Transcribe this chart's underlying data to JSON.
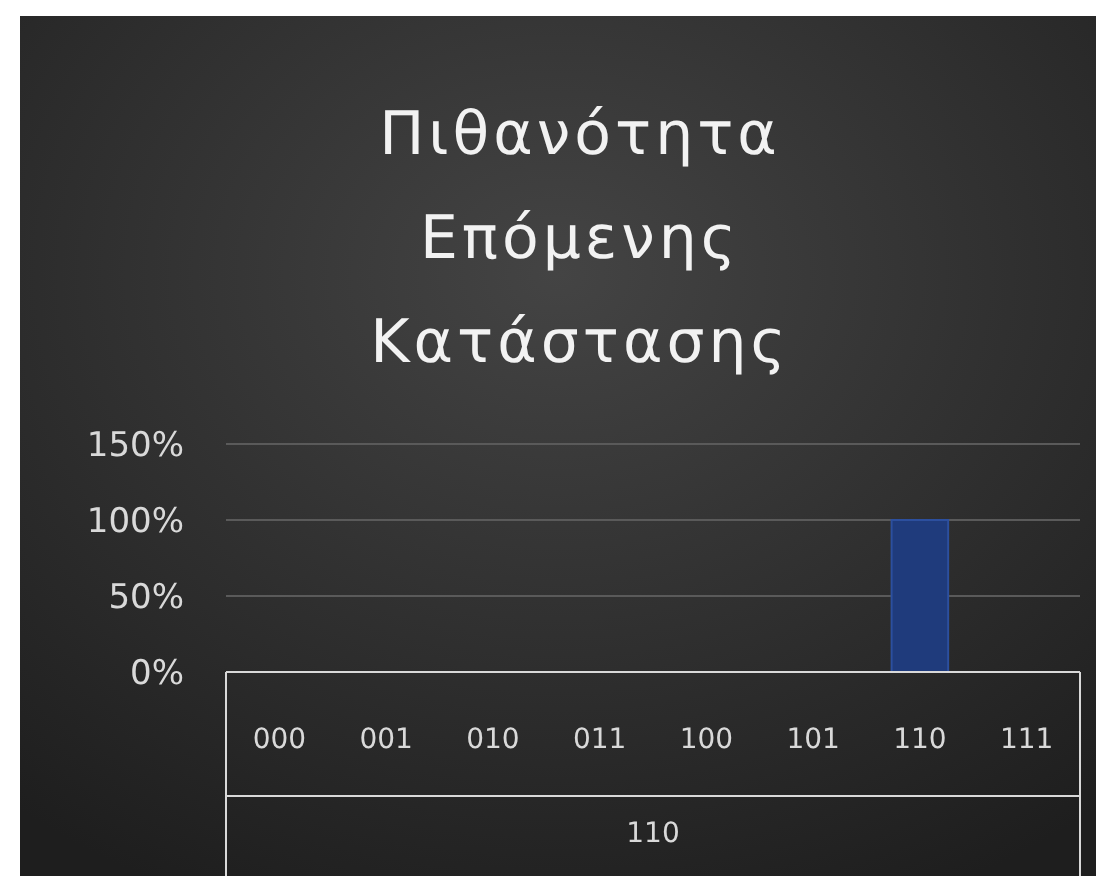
{
  "chart_data": {
    "type": "bar",
    "title": "Πιθανότητα Επόμενης Κατάστασης",
    "categories": [
      "000",
      "001",
      "010",
      "011",
      "100",
      "101",
      "110",
      "111"
    ],
    "xlabel": "110",
    "values": [
      0,
      0,
      0,
      0,
      0,
      0,
      100,
      0
    ],
    "color": "#1f3b7c",
    "ylim": [
      0,
      150
    ],
    "yticks": [
      {
        "value": 0,
        "label": "0%"
      },
      {
        "value": 50,
        "label": "50%"
      },
      {
        "value": 100,
        "label": "100%"
      },
      {
        "value": 150,
        "label": "150%"
      }
    ],
    "grid": "y"
  }
}
